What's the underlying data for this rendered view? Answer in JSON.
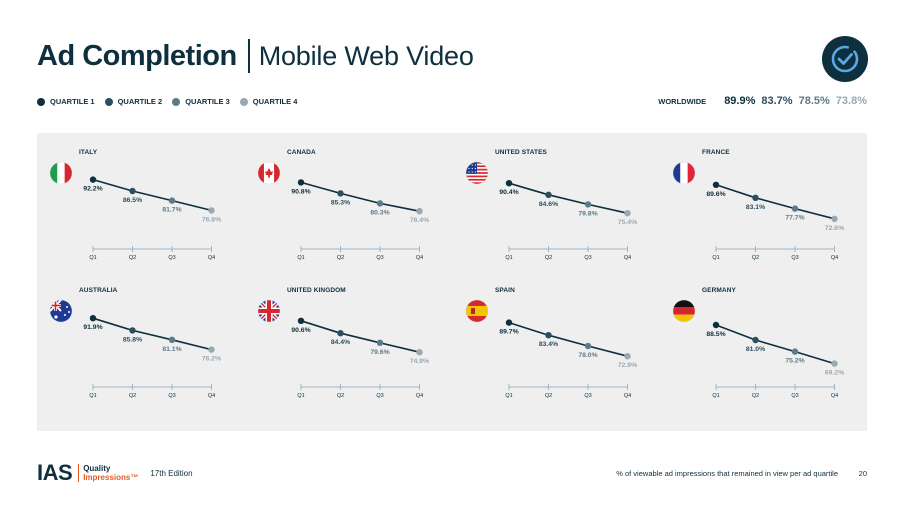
{
  "header": {
    "title_main": "Ad Completion",
    "title_sub": "Mobile Web Video"
  },
  "legend": [
    {
      "label": "QUARTILE 1",
      "color": "#0e2f3d"
    },
    {
      "label": "QUARTILE 2",
      "color": "#2c4f60"
    },
    {
      "label": "QUARTILE 3",
      "color": "#5e7a87"
    },
    {
      "label": "QUARTILE 4",
      "color": "#9aa9b1"
    }
  ],
  "worldwide": {
    "label": "WORLDWIDE",
    "values": [
      "89.9%",
      "83.7%",
      "78.5%",
      "73.8%"
    ]
  },
  "colors": {
    "line": "#0e2f3d",
    "q_colors": [
      "#0e2f3d",
      "#2c4f60",
      "#5e7a87",
      "#9aa9b1"
    ],
    "axis": "#9fb5c4",
    "panel": "#efefef",
    "accent": "#e85a24"
  },
  "chart_data": [
    {
      "type": "line",
      "country": "ITALY",
      "flag": "italy",
      "categories": [
        "Q1",
        "Q2",
        "Q3",
        "Q4"
      ],
      "values": [
        92.2,
        86.5,
        81.7,
        76.8
      ],
      "labels": [
        "92.2%",
        "86.5%",
        "81.7%",
        "76.8%"
      ]
    },
    {
      "type": "line",
      "country": "CANADA",
      "flag": "canada",
      "categories": [
        "Q1",
        "Q2",
        "Q3",
        "Q4"
      ],
      "values": [
        90.8,
        85.3,
        80.3,
        76.4
      ],
      "labels": [
        "90.8%",
        "85.3%",
        "80.3%",
        "76.4%"
      ]
    },
    {
      "type": "line",
      "country": "UNITED STATES",
      "flag": "usa",
      "categories": [
        "Q1",
        "Q2",
        "Q3",
        "Q4"
      ],
      "values": [
        90.4,
        84.6,
        79.8,
        75.4
      ],
      "labels": [
        "90.4%",
        "84.6%",
        "79.8%",
        "75.4%"
      ]
    },
    {
      "type": "line",
      "country": "FRANCE",
      "flag": "france",
      "categories": [
        "Q1",
        "Q2",
        "Q3",
        "Q4"
      ],
      "values": [
        89.6,
        83.1,
        77.7,
        72.6
      ],
      "labels": [
        "89.6%",
        "83.1%",
        "77.7%",
        "72.6%"
      ]
    },
    {
      "type": "line",
      "country": "AUSTRALIA",
      "flag": "australia",
      "categories": [
        "Q1",
        "Q2",
        "Q3",
        "Q4"
      ],
      "values": [
        91.9,
        85.8,
        81.1,
        76.2
      ],
      "labels": [
        "91.9%",
        "85.8%",
        "81.1%",
        "76.2%"
      ]
    },
    {
      "type": "line",
      "country": "UNITED KINGDOM",
      "flag": "uk",
      "categories": [
        "Q1",
        "Q2",
        "Q3",
        "Q4"
      ],
      "values": [
        90.6,
        84.4,
        79.6,
        74.9
      ],
      "labels": [
        "90.6%",
        "84.4%",
        "79.6%",
        "74.9%"
      ]
    },
    {
      "type": "line",
      "country": "SPAIN",
      "flag": "spain",
      "categories": [
        "Q1",
        "Q2",
        "Q3",
        "Q4"
      ],
      "values": [
        89.7,
        83.4,
        78.0,
        72.9
      ],
      "labels": [
        "89.7%",
        "83.4%",
        "78.0%",
        "72.9%"
      ]
    },
    {
      "type": "line",
      "country": "GERMANY",
      "flag": "germany",
      "categories": [
        "Q1",
        "Q2",
        "Q3",
        "Q4"
      ],
      "values": [
        88.5,
        81.0,
        75.2,
        69.2
      ],
      "labels": [
        "88.5%",
        "81.0%",
        "75.2%",
        "69.2%"
      ]
    }
  ],
  "footer": {
    "logo_text": "IAS",
    "brand_line1": "Quality",
    "brand_line2": "Impressions™",
    "edition": "17th Edition",
    "footnote": "% of viewable ad impressions that remained in view per ad quartile",
    "page_number": "20"
  }
}
